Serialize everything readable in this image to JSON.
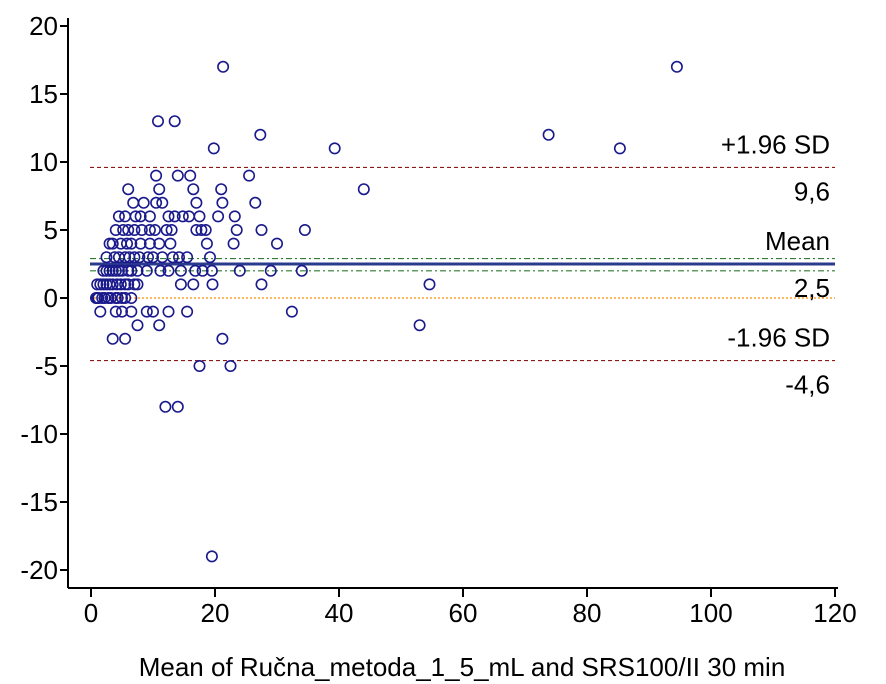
{
  "chart_data": {
    "type": "scatter",
    "title": "",
    "xlabel": "Mean of Ručna_metoda_1_5_mL and SRS100/II 30 min",
    "ylabel": "",
    "xlim": [
      -2,
      122
    ],
    "ylim": [
      -21,
      21
    ],
    "xticks": [
      0,
      20,
      40,
      60,
      80,
      100,
      120
    ],
    "yticks": [
      20,
      15,
      10,
      5,
      0,
      -5,
      -10,
      -15,
      -20
    ],
    "grid": false,
    "legend": "none",
    "marker_color": "#1a1a8c",
    "points": [
      [
        94.5,
        17
      ],
      [
        73.8,
        12
      ],
      [
        85.3,
        11
      ],
      [
        39.3,
        11
      ],
      [
        44,
        8
      ],
      [
        54.6,
        1
      ],
      [
        53,
        -2
      ],
      [
        34.5,
        5
      ],
      [
        34,
        2
      ],
      [
        32.4,
        -1
      ],
      [
        30,
        4
      ],
      [
        29,
        2
      ],
      [
        27.3,
        12
      ],
      [
        27.5,
        5
      ],
      [
        27.5,
        1
      ],
      [
        26.5,
        7
      ],
      [
        25.5,
        9
      ],
      [
        24,
        2
      ],
      [
        23.2,
        6
      ],
      [
        23.5,
        5
      ],
      [
        23,
        4
      ],
      [
        22.5,
        -5
      ],
      [
        21.3,
        17
      ],
      [
        21,
        8
      ],
      [
        21.2,
        7
      ],
      [
        21.2,
        -3
      ],
      [
        20.5,
        6
      ],
      [
        19.8,
        11
      ],
      [
        19.5,
        2
      ],
      [
        19.6,
        1
      ],
      [
        19.5,
        -19
      ],
      [
        19.2,
        3
      ],
      [
        18.5,
        5
      ],
      [
        18.7,
        4
      ],
      [
        18,
        2
      ],
      [
        17.8,
        5
      ],
      [
        17.5,
        -5
      ],
      [
        17.5,
        6
      ],
      [
        17,
        7
      ],
      [
        17,
        5
      ],
      [
        16.8,
        2
      ],
      [
        16.5,
        8
      ],
      [
        16.5,
        1
      ],
      [
        16,
        9
      ],
      [
        15.8,
        6
      ],
      [
        15.5,
        3
      ],
      [
        15.5,
        -1
      ],
      [
        14.8,
        6
      ],
      [
        14.5,
        2
      ],
      [
        14.5,
        1
      ],
      [
        14.2,
        3
      ],
      [
        14,
        9
      ],
      [
        14,
        -8
      ],
      [
        13.5,
        13
      ],
      [
        13.5,
        6
      ],
      [
        13.2,
        3
      ],
      [
        13,
        5
      ],
      [
        12.8,
        4
      ],
      [
        12.5,
        6
      ],
      [
        12.5,
        2
      ],
      [
        12.5,
        -1
      ],
      [
        12.2,
        5
      ],
      [
        12,
        -8
      ],
      [
        11.5,
        7
      ],
      [
        11.5,
        3
      ],
      [
        11.2,
        2
      ],
      [
        11,
        8
      ],
      [
        11,
        4
      ],
      [
        11,
        -2
      ],
      [
        10.8,
        13
      ],
      [
        10.5,
        9
      ],
      [
        10.5,
        7
      ],
      [
        10.3,
        5
      ],
      [
        10,
        3
      ],
      [
        10,
        -1
      ],
      [
        9.5,
        6
      ],
      [
        9.5,
        5
      ],
      [
        9.5,
        4
      ],
      [
        9.2,
        3
      ],
      [
        9,
        2
      ],
      [
        9,
        -1
      ],
      [
        8.5,
        7
      ],
      [
        8.2,
        5
      ],
      [
        8,
        6
      ],
      [
        8,
        4
      ],
      [
        7.8,
        3
      ],
      [
        7.5,
        2
      ],
      [
        7.5,
        1
      ],
      [
        7.5,
        -2
      ],
      [
        7.2,
        6
      ],
      [
        7,
        5
      ],
      [
        7,
        3
      ],
      [
        7,
        1
      ],
      [
        6.8,
        7
      ],
      [
        6.5,
        4
      ],
      [
        6.5,
        2
      ],
      [
        6.5,
        0
      ],
      [
        6.5,
        -1
      ],
      [
        6.2,
        3
      ],
      [
        6,
        8
      ],
      [
        6,
        5
      ],
      [
        6,
        2
      ],
      [
        6,
        1
      ],
      [
        5.8,
        4
      ],
      [
        5.5,
        6
      ],
      [
        5.5,
        3
      ],
      [
        5.5,
        1
      ],
      [
        5.5,
        0
      ],
      [
        5.5,
        -3
      ],
      [
        5.2,
        5
      ],
      [
        5,
        2
      ],
      [
        5,
        0
      ],
      [
        5,
        -1
      ],
      [
        4.8,
        4
      ],
      [
        4.8,
        1
      ],
      [
        4.5,
        6
      ],
      [
        4.5,
        3
      ],
      [
        4.5,
        2
      ],
      [
        4.3,
        0
      ],
      [
        4.2,
        1
      ],
      [
        4,
        5
      ],
      [
        4,
        2
      ],
      [
        4,
        0
      ],
      [
        4,
        -1
      ],
      [
        3.8,
        3
      ],
      [
        3.5,
        4
      ],
      [
        3.5,
        2
      ],
      [
        3.5,
        1
      ],
      [
        3.5,
        -3
      ],
      [
        3.2,
        0
      ],
      [
        3,
        4
      ],
      [
        3,
        2
      ],
      [
        3,
        1
      ],
      [
        2.8,
        0
      ],
      [
        2.5,
        3
      ],
      [
        2.5,
        2
      ],
      [
        2.5,
        1
      ],
      [
        2.2,
        0
      ],
      [
        2,
        2
      ],
      [
        2,
        1
      ],
      [
        1.8,
        0
      ],
      [
        1.5,
        1
      ],
      [
        1.5,
        -1
      ],
      [
        1.2,
        0
      ],
      [
        1,
        1
      ],
      [
        1,
        0
      ],
      [
        0.8,
        0
      ]
    ],
    "reference_lines": [
      {
        "name": "upper-loa",
        "y": 9.6,
        "color": "#8b1a1a",
        "style": "dash",
        "label": "+1.96 SD",
        "value_label": "9,6"
      },
      {
        "name": "mean",
        "y": 2.5,
        "color": "#2a3a8c",
        "style": "solid",
        "label": "Mean",
        "value_label": "2,5"
      },
      {
        "name": "mean-ci-upper",
        "y": 2.9,
        "color": "#2e7d32",
        "style": "dashdot"
      },
      {
        "name": "mean-ci-lower",
        "y": 2.0,
        "color": "#2e7d32",
        "style": "dashdot"
      },
      {
        "name": "zero",
        "y": 0,
        "color": "#ff8c00",
        "style": "dot"
      },
      {
        "name": "lower-loa",
        "y": -4.6,
        "color": "#8b1a1a",
        "style": "dash",
        "label": "-1.96 SD",
        "value_label": "-4,6"
      }
    ]
  }
}
